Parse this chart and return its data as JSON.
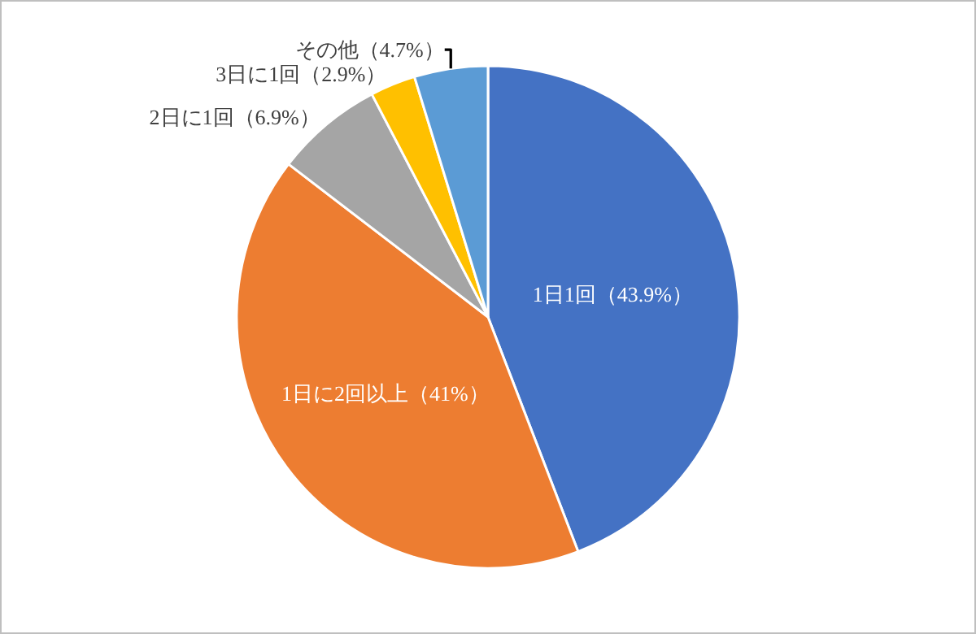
{
  "chart_data": {
    "type": "pie",
    "categories": [
      "1日1回（43.9%）",
      "1日に2回以上（41%）",
      "2日に1回（6.9%）",
      "3日に1回（2.9%）",
      "その他（4.7%）"
    ],
    "values": [
      43.9,
      41,
      6.9,
      2.9,
      4.7
    ],
    "colors": [
      "#4472c4",
      "#ed7d31",
      "#a5a5a5",
      "#ffc000",
      "#5b9bd5"
    ],
    "legend": false
  }
}
